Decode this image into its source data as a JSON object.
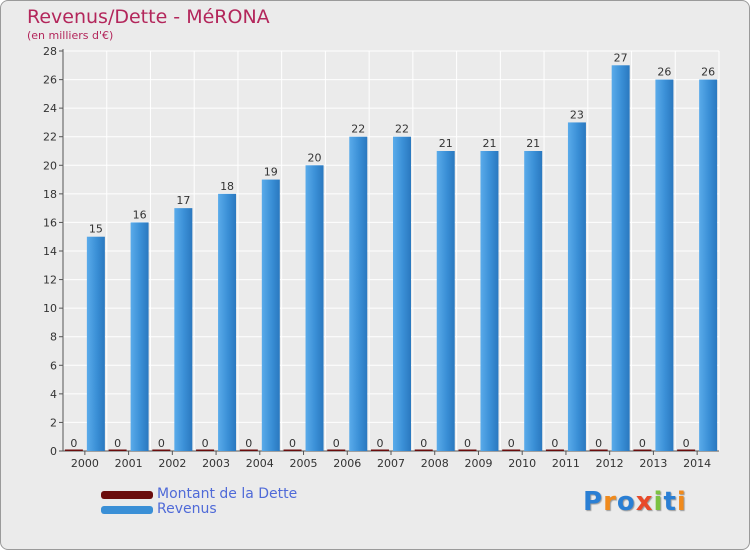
{
  "chart_data": {
    "type": "bar",
    "title": "Revenus/Dette - MéRONA",
    "subtitle": "(en milliers d'€)",
    "categories": [
      "2000",
      "2001",
      "2002",
      "2003",
      "2004",
      "2005",
      "2006",
      "2007",
      "2008",
      "2009",
      "2010",
      "2011",
      "2012",
      "2013",
      "2014"
    ],
    "series": [
      {
        "name": "Montant de la Dette",
        "color": "#6b0d0d",
        "values": [
          0,
          0,
          0,
          0,
          0,
          0,
          0,
          0,
          0,
          0,
          0,
          0,
          0,
          0,
          0
        ]
      },
      {
        "name": "Revenus",
        "color": "#3a8fd6",
        "values": [
          15,
          16,
          17,
          18,
          19,
          20,
          22,
          22,
          21,
          21,
          21,
          23,
          27,
          26,
          26
        ]
      }
    ],
    "ylim": [
      0,
      28
    ],
    "yticks": [
      0,
      2,
      4,
      6,
      8,
      10,
      12,
      14,
      16,
      18,
      20,
      22,
      24,
      26,
      28
    ],
    "grid": true,
    "legend_position": "bottom-left"
  },
  "legend": {
    "items": [
      {
        "label": "Montant de la Dette",
        "color": "#6b0d0d"
      },
      {
        "label": "Revenus",
        "color": "#3a8fd6"
      }
    ]
  },
  "logo": {
    "letters": [
      "P",
      "r",
      "o",
      "x",
      "i",
      "t",
      "i"
    ],
    "colors": [
      "#2a7fd4",
      "#f08a1c",
      "#2a7fd4",
      "#e84a2a",
      "#7cc242",
      "#2a7fd4",
      "#f08a1c"
    ]
  }
}
